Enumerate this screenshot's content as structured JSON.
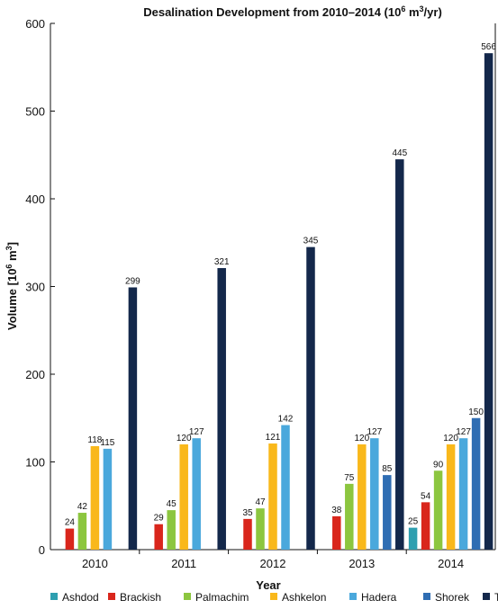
{
  "chart_data": {
    "type": "bar",
    "title": "Desalination Development from 2010–2014 (10",
    "title_sup": "6",
    "title_mid": " m",
    "title_sup2": "3",
    "title_end": "/yr)",
    "xlabel": "Year",
    "ylabel": "Volume  [10",
    "ylabel_sup": "6",
    "ylabel_mid": " m",
    "ylabel_sup2": "3",
    "ylabel_end": "]",
    "ylim": [
      0,
      600
    ],
    "yticks": [
      0,
      100,
      200,
      300,
      400,
      500,
      600
    ],
    "categories": [
      "2010",
      "2011",
      "2012",
      "2013",
      "2014"
    ],
    "series": [
      {
        "name": "Ashdod",
        "color": "#2e9fb0",
        "values": [
          null,
          null,
          null,
          null,
          25
        ]
      },
      {
        "name": "Brackish",
        "color": "#d9261c",
        "values": [
          24,
          29,
          35,
          38,
          54
        ]
      },
      {
        "name": "Palmachim",
        "color": "#8cc63f",
        "values": [
          42,
          45,
          47,
          75,
          90
        ]
      },
      {
        "name": "Ashkelon",
        "color": "#f9b81b",
        "values": [
          118,
          120,
          121,
          120,
          120
        ]
      },
      {
        "name": "Hadera",
        "color": "#4aa8dc",
        "values": [
          115,
          127,
          142,
          127,
          127
        ]
      },
      {
        "name": "Shorek",
        "color": "#2f6db3",
        "values": [
          null,
          null,
          null,
          85,
          150
        ]
      },
      {
        "name": "Total",
        "color": "#14284b",
        "values": [
          299,
          321,
          345,
          445,
          566
        ]
      }
    ],
    "grid": false,
    "legend_position": "bottom"
  }
}
